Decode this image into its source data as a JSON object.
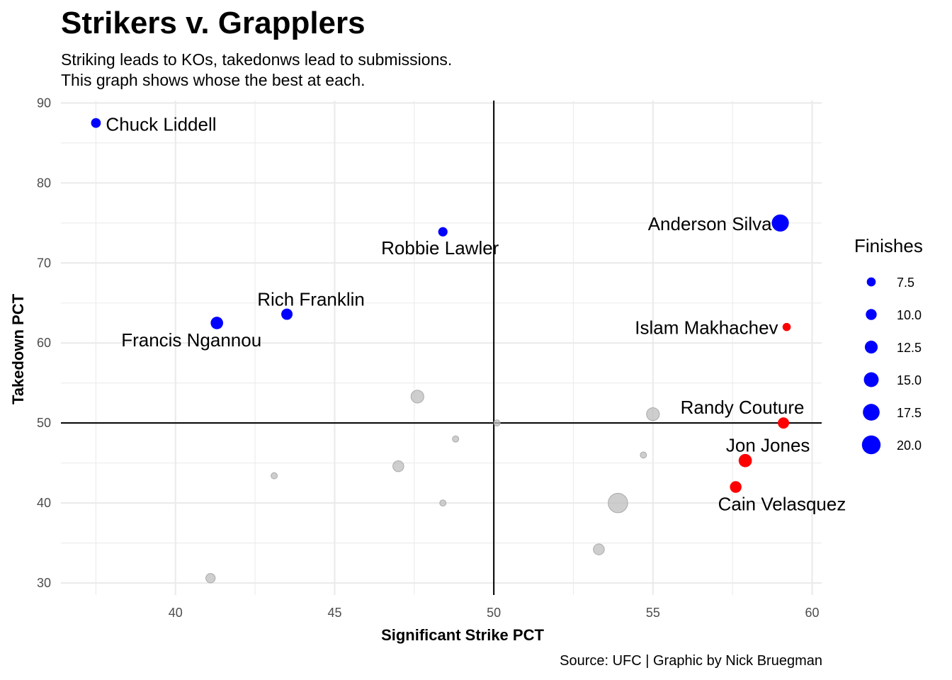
{
  "chart_data": {
    "type": "scatter",
    "title": "Strikers v. Grapplers",
    "subtitle": [
      "Striking leads to KOs, takedonws lead to submissions.",
      "This graph shows whose the best at each."
    ],
    "caption": "Source: UFC | Graphic by Nick Bruegman",
    "xlabel": "Significant Strike PCT",
    "ylabel": "Takedown PCT",
    "xlim": [
      36.4,
      60.3
    ],
    "ylim": [
      28.5,
      90.3
    ],
    "xticks": [
      40,
      45,
      50,
      55,
      60
    ],
    "yticks": [
      30,
      40,
      50,
      60,
      70,
      80,
      90
    ],
    "reference_lines": {
      "x": 50,
      "y": 50
    },
    "grid": true,
    "legend": {
      "title": "Finishes",
      "position": "right",
      "color": "#0000ff",
      "sizes": [
        7.5,
        10.0,
        12.5,
        15.0,
        17.5,
        20.0
      ],
      "labels": [
        "7.5",
        "10.0",
        "12.5",
        "15.0",
        "17.5",
        "20.0"
      ]
    },
    "colors": {
      "striker": "#0000ff",
      "grappler": "#ff0000",
      "other": "#bebebe"
    },
    "points": [
      {
        "label": "Chuck Liddell",
        "x": 37.5,
        "y": 87.5,
        "finishes": 8.5,
        "group": "striker"
      },
      {
        "label": "Anderson Silva",
        "x": 59.0,
        "y": 75.0,
        "finishes": 18.0,
        "group": "striker"
      },
      {
        "label": "Robbie Lawler",
        "x": 48.4,
        "y": 73.9,
        "finishes": 8.0,
        "group": "striker"
      },
      {
        "label": "Rich Franklin",
        "x": 43.5,
        "y": 63.6,
        "finishes": 10.5,
        "group": "striker"
      },
      {
        "label": "Francis Ngannou",
        "x": 41.3,
        "y": 62.5,
        "finishes": 12.0,
        "group": "striker"
      },
      {
        "label": "Islam Makhachev",
        "x": 59.2,
        "y": 62.0,
        "finishes": 6.5,
        "group": "grappler"
      },
      {
        "label": "Randy Couture",
        "x": 59.1,
        "y": 50.0,
        "finishes": 10.5,
        "group": "grappler"
      },
      {
        "label": "Jon Jones",
        "x": 57.9,
        "y": 45.3,
        "finishes": 13.0,
        "group": "grappler"
      },
      {
        "label": "Cain Velasquez",
        "x": 57.6,
        "y": 42.0,
        "finishes": 11.0,
        "group": "grappler"
      },
      {
        "label": "",
        "x": 53.9,
        "y": 40.0,
        "finishes": 21.0,
        "group": "other"
      },
      {
        "label": "",
        "x": 47.6,
        "y": 53.3,
        "finishes": 12.5,
        "group": "other"
      },
      {
        "label": "",
        "x": 55.0,
        "y": 51.1,
        "finishes": 12.5,
        "group": "other"
      },
      {
        "label": "",
        "x": 47.0,
        "y": 44.6,
        "finishes": 10.0,
        "group": "other"
      },
      {
        "label": "",
        "x": 53.3,
        "y": 34.2,
        "finishes": 10.0,
        "group": "other"
      },
      {
        "label": "",
        "x": 41.1,
        "y": 30.6,
        "finishes": 8.0,
        "group": "other"
      },
      {
        "label": "",
        "x": 48.8,
        "y": 48.0,
        "finishes": 4.0,
        "group": "other"
      },
      {
        "label": "",
        "x": 50.1,
        "y": 50.0,
        "finishes": 4.0,
        "group": "other"
      },
      {
        "label": "",
        "x": 43.1,
        "y": 43.4,
        "finishes": 4.0,
        "group": "other"
      },
      {
        "label": "",
        "x": 48.4,
        "y": 40.0,
        "finishes": 4.0,
        "group": "other"
      },
      {
        "label": "",
        "x": 54.7,
        "y": 46.0,
        "finishes": 4.0,
        "group": "other"
      }
    ]
  }
}
